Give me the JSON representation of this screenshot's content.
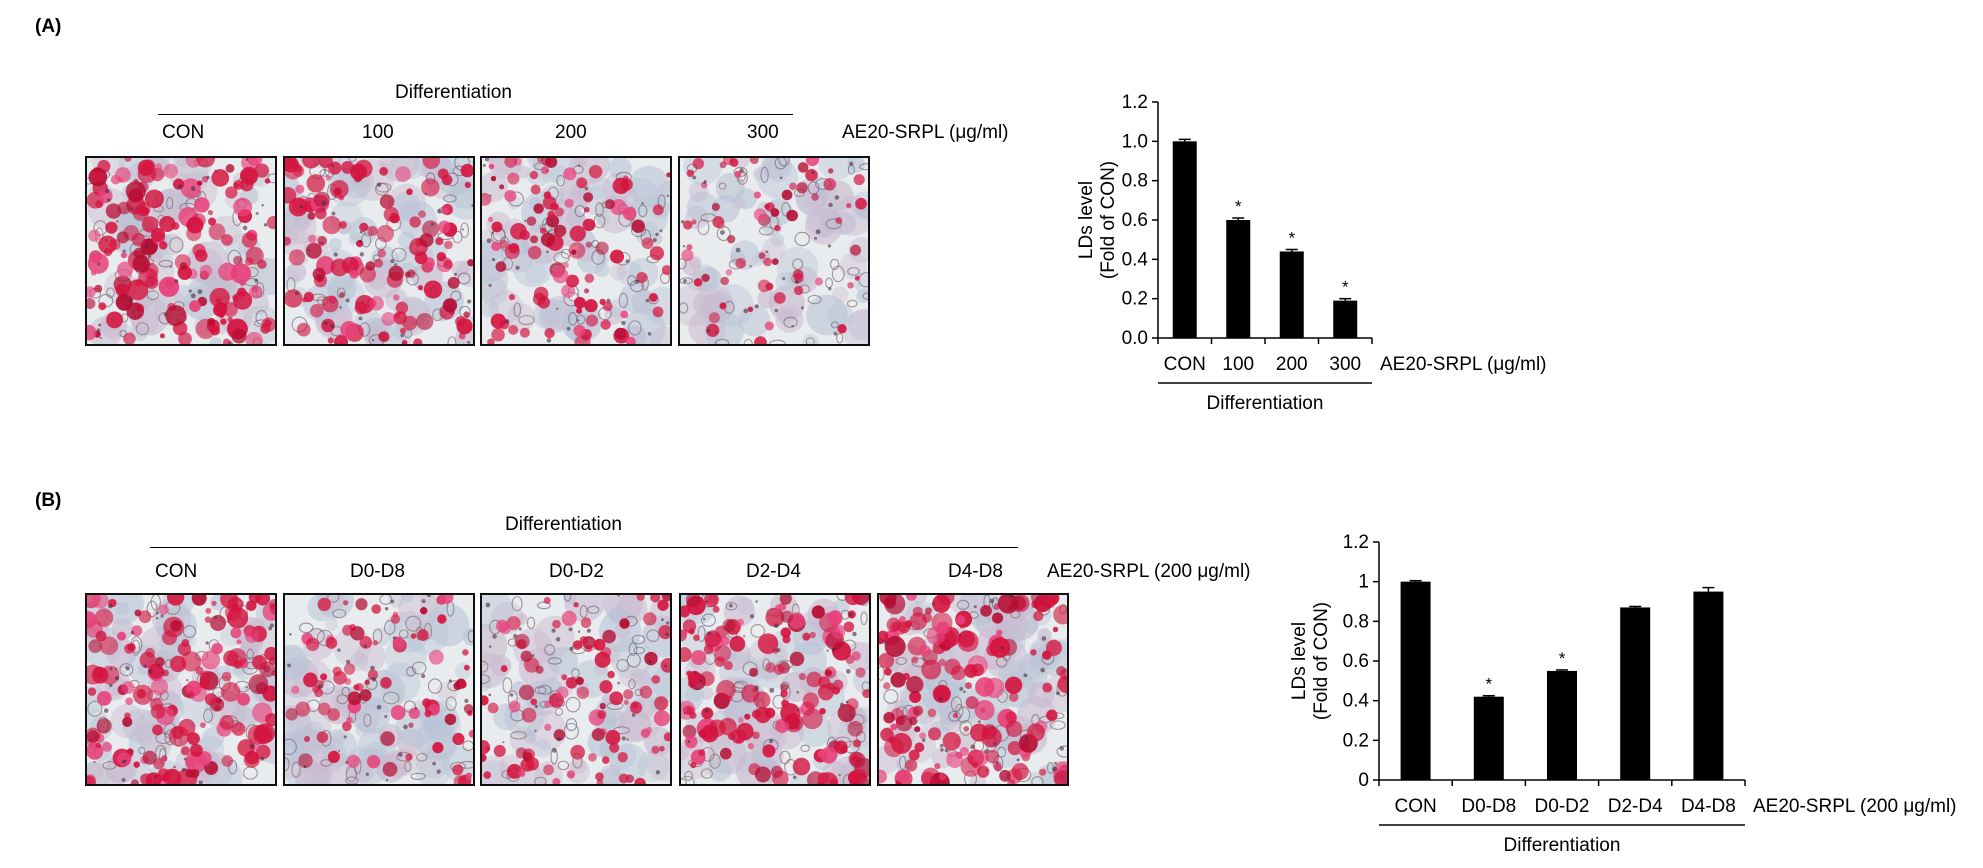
{
  "panel_a": {
    "label": "(A)",
    "group_label": "Differentiation",
    "treatment_label": "AE20-SRPL (μg/ml)",
    "columns": [
      "CON",
      "100",
      "200",
      "300"
    ],
    "stain_density": [
      0.9,
      0.7,
      0.5,
      0.22
    ]
  },
  "panel_b": {
    "label": "(B)",
    "group_label": "Differentiation",
    "treatment_label": "AE20-SRPL (200 μg/ml)",
    "columns": [
      "CON",
      "D0-D8",
      "D0-D2",
      "D2-D4",
      "D4-D8"
    ],
    "stain_density": [
      0.9,
      0.35,
      0.45,
      0.85,
      0.9
    ]
  },
  "chart_data": [
    {
      "type": "bar",
      "title": "",
      "ylabel_lines": [
        "LDs level",
        "(Fold of CON)"
      ],
      "categories": [
        "CON",
        "100",
        "200",
        "300"
      ],
      "values": [
        1.0,
        0.6,
        0.44,
        0.19
      ],
      "errors": [
        0.01,
        0.01,
        0.01,
        0.01
      ],
      "significance": [
        "",
        "*",
        "*",
        "*"
      ],
      "ylim": [
        0,
        1.2
      ],
      "yticks": [
        "0.0",
        "0.2",
        "0.4",
        "0.6",
        "0.8",
        "1.0",
        "1.2"
      ],
      "x_suffix": "AE20-SRPL (μg/ml)",
      "group_label": "Differentiation",
      "bar_color": "#000000"
    },
    {
      "type": "bar",
      "title": "",
      "ylabel_lines": [
        "LDs level",
        "(Fold of CON)"
      ],
      "categories": [
        "CON",
        "D0-D8",
        "D0-D2",
        "D2-D4",
        "D4-D8"
      ],
      "values": [
        1.0,
        0.42,
        0.55,
        0.87,
        0.95
      ],
      "errors": [
        0.005,
        0.005,
        0.005,
        0.005,
        0.02
      ],
      "significance": [
        "",
        "*",
        "*",
        "",
        ""
      ],
      "ylim": [
        0,
        1.2
      ],
      "yticks": [
        "0",
        "0.2",
        "0.4",
        "0.6",
        "0.8",
        "1",
        "1.2"
      ],
      "x_suffix": "AE20-SRPL (200 μg/ml)",
      "group_label": "Differentiation",
      "bar_color": "#000000"
    }
  ]
}
